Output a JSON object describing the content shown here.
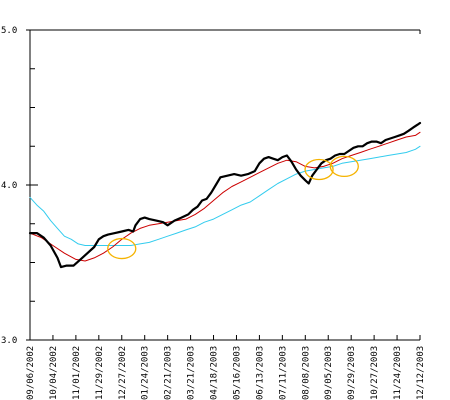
{
  "chart_data": {
    "type": "line",
    "title": "",
    "xlabel": "",
    "ylabel": "",
    "ylim": [
      3.0,
      5.0
    ],
    "grid": false,
    "legend": "none",
    "y_ticks": [
      {
        "value": 5.0,
        "label": "5.0"
      },
      {
        "value": 4.0,
        "label": "4.0"
      },
      {
        "value": 3.0,
        "label": "3.0"
      }
    ],
    "y_minor_ticks": [
      3.25,
      3.5,
      3.75,
      4.25,
      4.5,
      4.75
    ],
    "x_tick_labels": [
      "09/06/2002",
      "10/04/2002",
      "11/01/2002",
      "11/29/2002",
      "12/27/2002",
      "01/24/2003",
      "02/21/2003",
      "03/21/2003",
      "04/18/2003",
      "05/16/2003",
      "06/13/2003",
      "07/11/2003",
      "08/08/2003",
      "09/05/2003",
      "09/29/2003",
      "10/27/2003",
      "11/24/2003",
      "12/12/2003"
    ],
    "x_range": [
      0,
      17
    ],
    "series": [
      {
        "color": "#000000",
        "width": 2.2,
        "points": [
          [
            0,
            3.69
          ],
          [
            0.3,
            3.69
          ],
          [
            0.6,
            3.66
          ],
          [
            0.9,
            3.61
          ],
          [
            1.2,
            3.53
          ],
          [
            1.35,
            3.47
          ],
          [
            1.6,
            3.48
          ],
          [
            1.9,
            3.48
          ],
          [
            2.2,
            3.52
          ],
          [
            2.5,
            3.56
          ],
          [
            2.8,
            3.6
          ],
          [
            3.0,
            3.65
          ],
          [
            3.2,
            3.67
          ],
          [
            3.4,
            3.68
          ],
          [
            3.7,
            3.69
          ],
          [
            4.0,
            3.7
          ],
          [
            4.3,
            3.71
          ],
          [
            4.5,
            3.7
          ],
          [
            4.6,
            3.74
          ],
          [
            4.8,
            3.78
          ],
          [
            5.0,
            3.79
          ],
          [
            5.2,
            3.78
          ],
          [
            5.5,
            3.77
          ],
          [
            5.8,
            3.76
          ],
          [
            6.0,
            3.74
          ],
          [
            6.3,
            3.77
          ],
          [
            6.6,
            3.79
          ],
          [
            6.9,
            3.81
          ],
          [
            7.1,
            3.84
          ],
          [
            7.3,
            3.86
          ],
          [
            7.5,
            3.9
          ],
          [
            7.7,
            3.91
          ],
          [
            7.9,
            3.95
          ],
          [
            8.1,
            4.0
          ],
          [
            8.3,
            4.05
          ],
          [
            8.6,
            4.06
          ],
          [
            8.9,
            4.07
          ],
          [
            9.2,
            4.06
          ],
          [
            9.5,
            4.07
          ],
          [
            9.8,
            4.09
          ],
          [
            10.0,
            4.14
          ],
          [
            10.2,
            4.17
          ],
          [
            10.4,
            4.18
          ],
          [
            10.6,
            4.17
          ],
          [
            10.8,
            4.16
          ],
          [
            11.0,
            4.18
          ],
          [
            11.2,
            4.19
          ],
          [
            11.4,
            4.15
          ],
          [
            11.6,
            4.1
          ],
          [
            11.8,
            4.06
          ],
          [
            12.0,
            4.03
          ],
          [
            12.15,
            4.01
          ],
          [
            12.3,
            4.06
          ],
          [
            12.5,
            4.1
          ],
          [
            12.7,
            4.14
          ],
          [
            12.9,
            4.16
          ],
          [
            13.1,
            4.17
          ],
          [
            13.3,
            4.19
          ],
          [
            13.5,
            4.2
          ],
          [
            13.7,
            4.2
          ],
          [
            13.9,
            4.22
          ],
          [
            14.1,
            4.24
          ],
          [
            14.3,
            4.25
          ],
          [
            14.5,
            4.25
          ],
          [
            14.7,
            4.27
          ],
          [
            14.9,
            4.28
          ],
          [
            15.1,
            4.28
          ],
          [
            15.3,
            4.27
          ],
          [
            15.5,
            4.29
          ],
          [
            15.7,
            4.3
          ],
          [
            15.9,
            4.31
          ],
          [
            16.1,
            4.32
          ],
          [
            16.3,
            4.33
          ],
          [
            16.5,
            4.35
          ],
          [
            16.7,
            4.37
          ],
          [
            16.9,
            4.39
          ],
          [
            17.0,
            4.4
          ]
        ]
      },
      {
        "color": "#cc0000",
        "width": 1,
        "points": [
          [
            0,
            3.69
          ],
          [
            0.5,
            3.66
          ],
          [
            1.0,
            3.61
          ],
          [
            1.5,
            3.56
          ],
          [
            2.0,
            3.52
          ],
          [
            2.4,
            3.51
          ],
          [
            2.8,
            3.53
          ],
          [
            3.2,
            3.56
          ],
          [
            3.6,
            3.6
          ],
          [
            4.0,
            3.65
          ],
          [
            4.4,
            3.69
          ],
          [
            4.8,
            3.72
          ],
          [
            5.2,
            3.74
          ],
          [
            5.6,
            3.75
          ],
          [
            6.0,
            3.76
          ],
          [
            6.4,
            3.77
          ],
          [
            6.8,
            3.78
          ],
          [
            7.2,
            3.81
          ],
          [
            7.6,
            3.85
          ],
          [
            8.0,
            3.9
          ],
          [
            8.4,
            3.95
          ],
          [
            8.8,
            3.99
          ],
          [
            9.2,
            4.02
          ],
          [
            9.6,
            4.05
          ],
          [
            10.0,
            4.08
          ],
          [
            10.4,
            4.11
          ],
          [
            10.8,
            4.14
          ],
          [
            11.2,
            4.16
          ],
          [
            11.6,
            4.15
          ],
          [
            12.0,
            4.12
          ],
          [
            12.4,
            4.11
          ],
          [
            12.8,
            4.12
          ],
          [
            13.2,
            4.14
          ],
          [
            13.6,
            4.17
          ],
          [
            14.0,
            4.19
          ],
          [
            14.4,
            4.21
          ],
          [
            14.8,
            4.23
          ],
          [
            15.2,
            4.25
          ],
          [
            15.6,
            4.27
          ],
          [
            16.0,
            4.29
          ],
          [
            16.4,
            4.31
          ],
          [
            16.8,
            4.32
          ],
          [
            17.0,
            4.34
          ]
        ]
      },
      {
        "color": "#33ccee",
        "width": 1,
        "points": [
          [
            0,
            3.92
          ],
          [
            0.3,
            3.87
          ],
          [
            0.6,
            3.83
          ],
          [
            0.9,
            3.77
          ],
          [
            1.2,
            3.72
          ],
          [
            1.5,
            3.67
          ],
          [
            1.8,
            3.65
          ],
          [
            2.1,
            3.62
          ],
          [
            2.4,
            3.61
          ],
          [
            2.8,
            3.61
          ],
          [
            3.2,
            3.61
          ],
          [
            3.6,
            3.61
          ],
          [
            4.0,
            3.61
          ],
          [
            4.4,
            3.61
          ],
          [
            4.8,
            3.62
          ],
          [
            5.2,
            3.63
          ],
          [
            5.6,
            3.65
          ],
          [
            6.0,
            3.67
          ],
          [
            6.4,
            3.69
          ],
          [
            6.8,
            3.71
          ],
          [
            7.2,
            3.73
          ],
          [
            7.6,
            3.76
          ],
          [
            8.0,
            3.78
          ],
          [
            8.4,
            3.81
          ],
          [
            8.8,
            3.84
          ],
          [
            9.2,
            3.87
          ],
          [
            9.6,
            3.89
          ],
          [
            10.0,
            3.93
          ],
          [
            10.4,
            3.97
          ],
          [
            10.8,
            4.01
          ],
          [
            11.2,
            4.04
          ],
          [
            11.6,
            4.07
          ],
          [
            12.0,
            4.09
          ],
          [
            12.4,
            4.1
          ],
          [
            12.8,
            4.11
          ],
          [
            13.2,
            4.12
          ],
          [
            13.6,
            4.14
          ],
          [
            14.0,
            4.15
          ],
          [
            14.4,
            4.16
          ],
          [
            14.8,
            4.17
          ],
          [
            15.2,
            4.18
          ],
          [
            15.6,
            4.19
          ],
          [
            16.0,
            4.2
          ],
          [
            16.4,
            4.21
          ],
          [
            16.8,
            4.23
          ],
          [
            17.0,
            4.25
          ]
        ]
      }
    ],
    "annotations": [
      {
        "type": "ellipse",
        "color": "#f5b300",
        "cx": 4.0,
        "cy": 3.59
      },
      {
        "type": "ellipse",
        "color": "#f5b300",
        "cx": 12.6,
        "cy": 4.1
      },
      {
        "type": "ellipse",
        "color": "#f5b300",
        "cx": 13.7,
        "cy": 4.12
      }
    ]
  }
}
